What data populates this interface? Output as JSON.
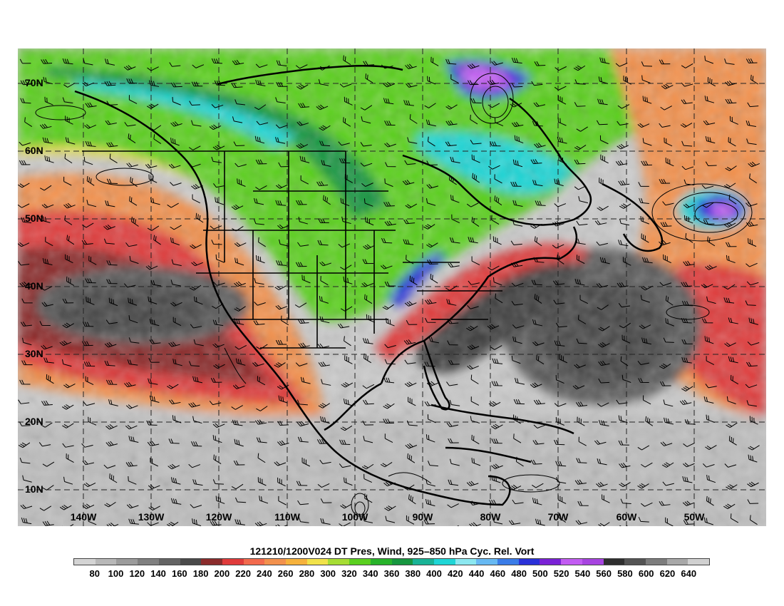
{
  "map": {
    "title": "121210/1200V024 DT Pres, Wind, 925–850 hPa Cyc. Rel. Vort",
    "lat_labels": [
      "70N",
      "60N",
      "50N",
      "40N",
      "30N",
      "20N",
      "10N"
    ],
    "lon_labels": [
      "140W",
      "130W",
      "120W",
      "110W",
      "100W",
      "90W",
      "80W",
      "70W",
      "60W",
      "50W"
    ],
    "colorbar": {
      "labels": [
        "80",
        "100",
        "120",
        "140",
        "160",
        "180",
        "200",
        "220",
        "240",
        "260",
        "280",
        "300",
        "320",
        "340",
        "360",
        "380",
        "400",
        "420",
        "440",
        "460",
        "480",
        "500",
        "520",
        "540",
        "560",
        "580",
        "600",
        "620",
        "640"
      ],
      "colors": [
        "#d4d4d4",
        "#b8b8b8",
        "#9c9c9c",
        "#808080",
        "#646464",
        "#4a4a4a",
        "#8b2c2c",
        "#e03b3b",
        "#f26a4d",
        "#f2914d",
        "#f6b23c",
        "#f1e24a",
        "#a6dd34",
        "#5ad01f",
        "#27b32a",
        "#16963f",
        "#19b396",
        "#1fd6d6",
        "#8ce8f0",
        "#67b9f2",
        "#3a7ce8",
        "#2a31d8",
        "#7a22d6",
        "#c25cf2",
        "#a744e0",
        "#2f2f2f",
        "#545454",
        "#7d7d7d",
        "#a8a8a8",
        "#d0d0d0"
      ]
    }
  }
}
